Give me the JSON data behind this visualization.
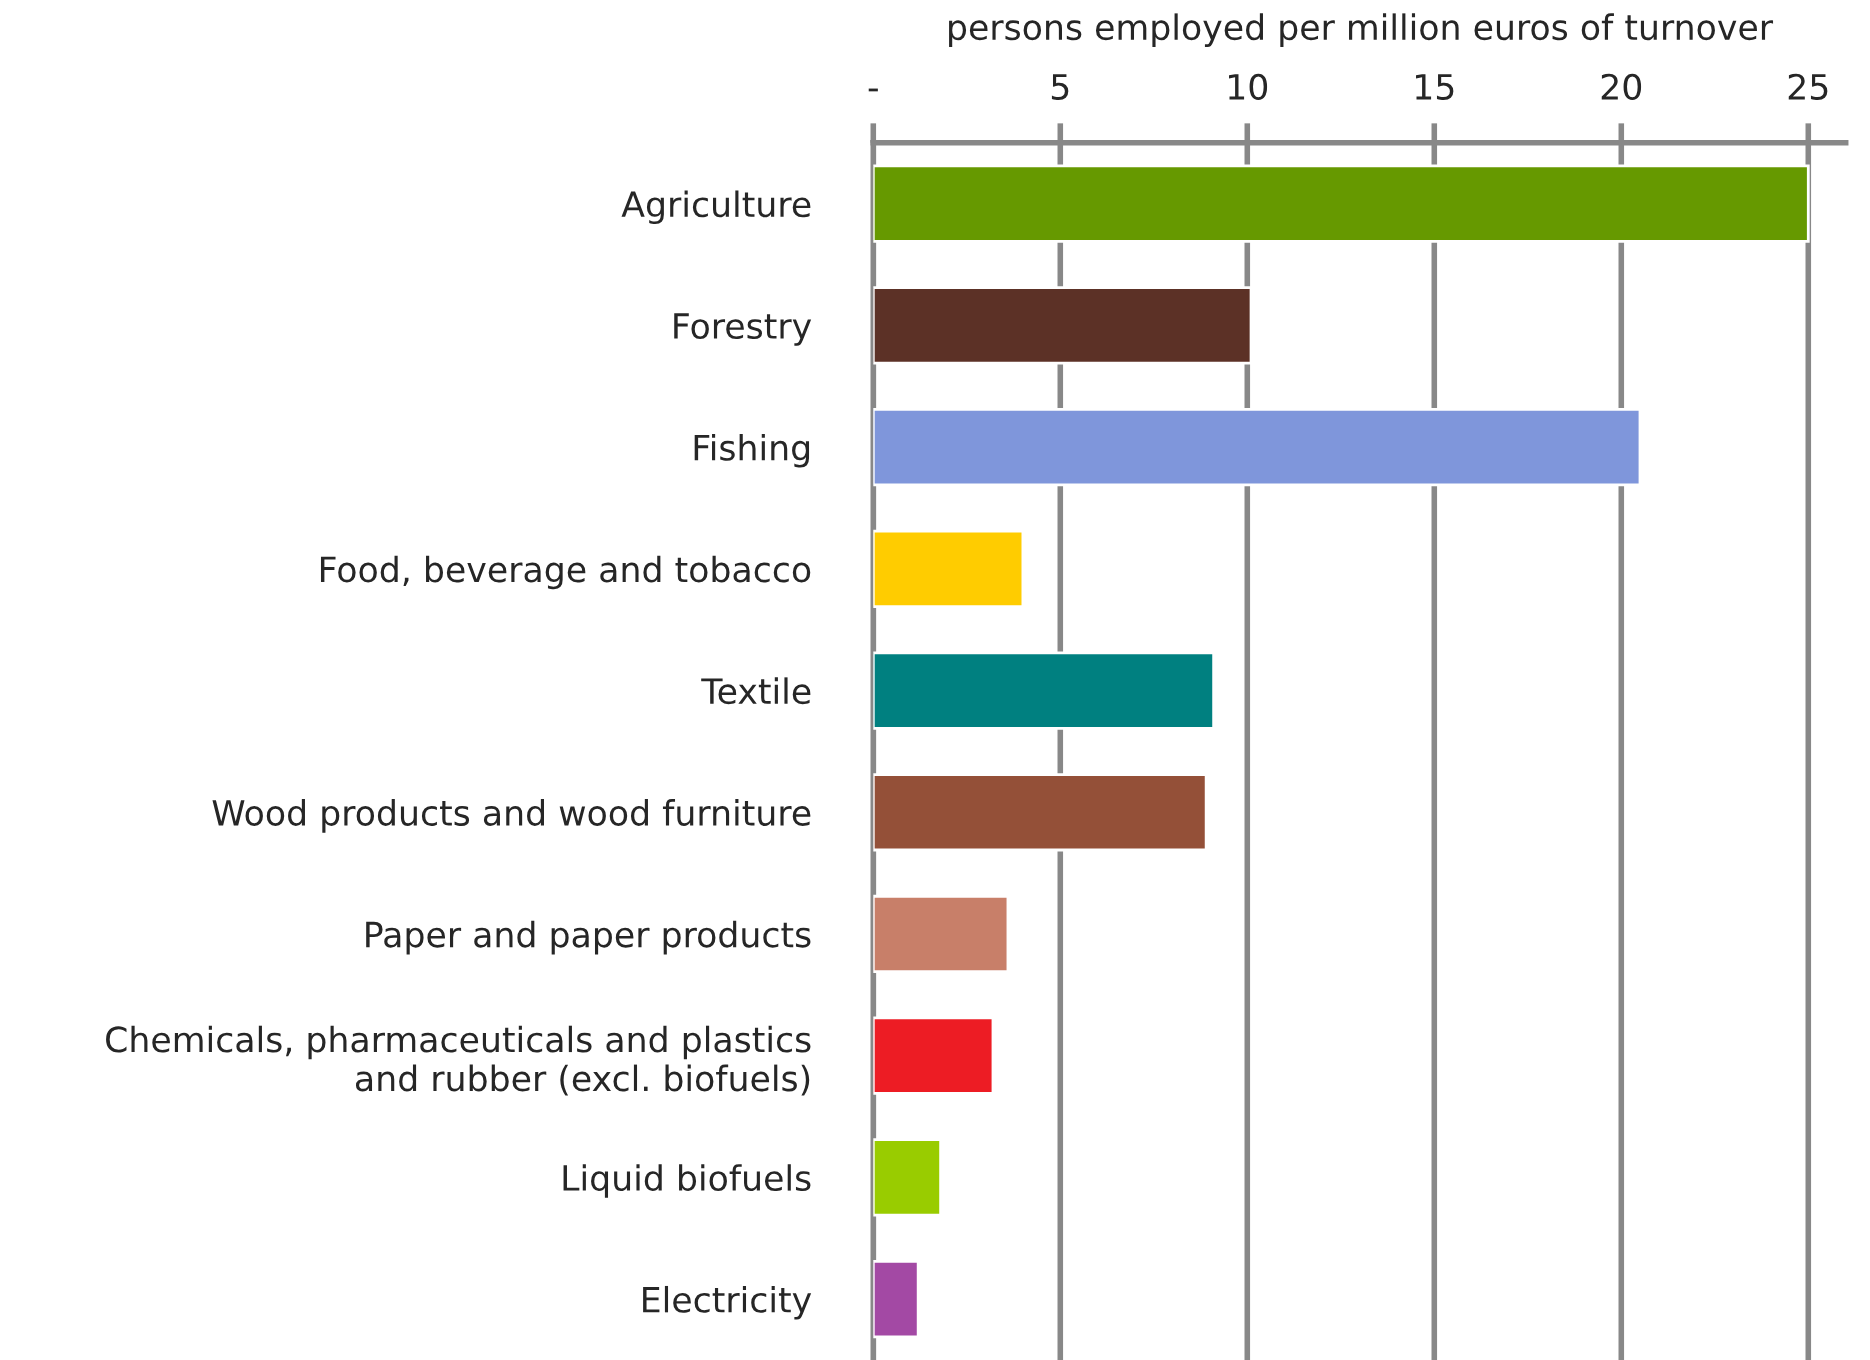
{
  "chart_data": {
    "type": "bar",
    "orientation": "horizontal",
    "xlabel": "persons employed per million euros of turnover",
    "categories": [
      "Agriculture",
      "Forestry",
      "Fishing",
      "Food, beverage and tobacco",
      "Textile",
      "Wood products and wood furniture",
      "Paper and paper products",
      "Chemicals, pharmaceuticals and plastics\nand rubber (excl. biofuels)",
      "Liquid biofuels",
      "Electricity"
    ],
    "values": [
      25.0,
      10.1,
      20.5,
      4.0,
      9.1,
      8.9,
      3.6,
      3.2,
      1.8,
      1.2
    ],
    "colors": [
      "#669900",
      "#5c3126",
      "#7f96db",
      "#ffcc00",
      "#008080",
      "#945038",
      "#c87f69",
      "#ed1c24",
      "#99cc00",
      "#a349a4"
    ],
    "xlim": [
      0,
      26
    ],
    "xticks": [
      {
        "value": 0,
        "label": "-"
      },
      5,
      10,
      15,
      20,
      25
    ],
    "grid": "x"
  }
}
